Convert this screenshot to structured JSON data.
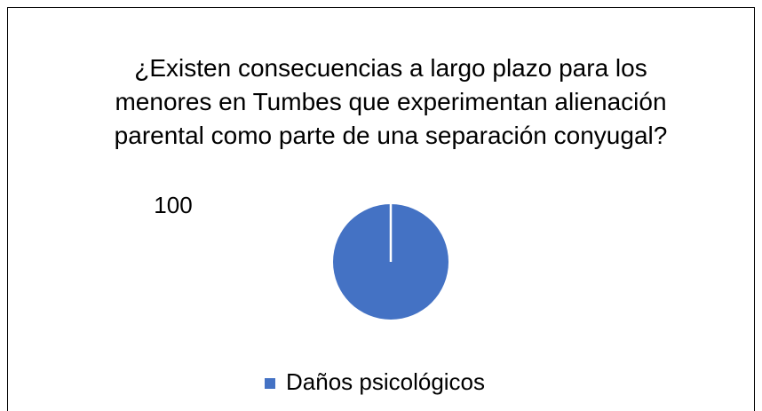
{
  "chart_data": {
    "type": "pie",
    "title": "¿Existen consecuencias a largo plazo para los menores en Tumbes que experimentan alienación parental como parte de una separación conyugal?",
    "categories": [
      "Daños psicológicos"
    ],
    "values": [
      100
    ],
    "colors": [
      "#4472c4"
    ],
    "legend": "bottom"
  }
}
